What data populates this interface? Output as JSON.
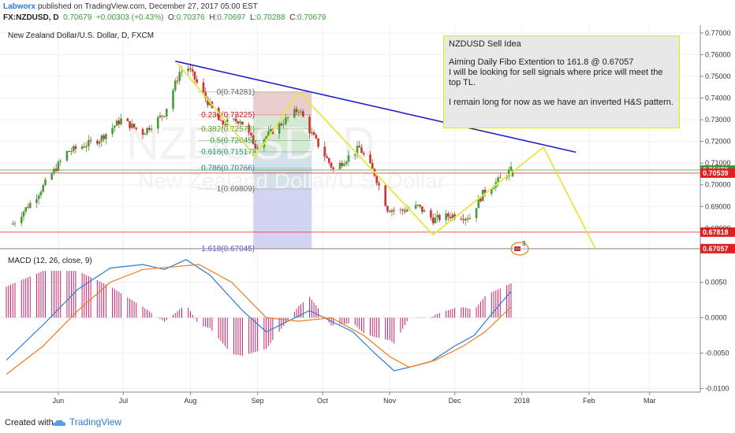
{
  "header": {
    "author": "Labworx",
    "published": "published on TradingView.com, December 27, 2017 05:00 EST",
    "symbol": "FX:NZDUSD, D",
    "price": "0.70679",
    "change": "+0.00303 (+0.43%)",
    "o_label": "O:",
    "o": "0.70376",
    "h_label": "H:",
    "h": "0.70697",
    "l_label": "L:",
    "l": "0.70288",
    "c_label": "C:",
    "c": "0.70679"
  },
  "footer": {
    "created": "Created with",
    "brand": "TradingView"
  },
  "note": {
    "title": "NZDUSD Sell Idea",
    "line1": "Aiming Daily Fibo Extention to 161.8 @ 0.67057",
    "line2": "I will be looking for sell signals where price will meet the top TL.",
    "line3": "I remain long for now as we have an inverted H&S pattern."
  },
  "colors": {
    "bull": "#4a9a3a",
    "bear": "#d23030",
    "trend": "#2020c8",
    "zigzag": "#e6e640",
    "macd": "#2a7bd6",
    "signal": "#f07a20",
    "hist": "#c8206a",
    "price_tag": "#3a9a3a",
    "level_tag": "#e02020"
  },
  "chart_data": [
    {
      "type": "candlestick",
      "title": "New Zealand Dollar/U.S. Dollar, D, FXCM",
      "watermark": "NZDUSD, D",
      "watermark2": "New Zealand Dollar/U.S. Dollar",
      "x_range": [
        "2017-05-08",
        "2018-03-20"
      ],
      "ylim": [
        0.6705,
        0.7725
      ],
      "y_ticks": [
        "0.77000",
        "0.76000",
        "0.75000",
        "0.74000",
        "0.73000",
        "0.72000",
        "0.71000",
        "0.70000",
        "0.69000",
        "0.68000"
      ],
      "x_ticks": [
        {
          "label": "Jun",
          "date": "2017-06-01"
        },
        {
          "label": "Jul",
          "date": "2017-07-01"
        },
        {
          "label": "Aug",
          "date": "2017-08-01"
        },
        {
          "label": "Sep",
          "date": "2017-09-01"
        },
        {
          "label": "Oct",
          "date": "2017-10-01"
        },
        {
          "label": "Nov",
          "date": "2017-11-01"
        },
        {
          "label": "Dec",
          "date": "2017-12-01"
        },
        {
          "label": "2018",
          "date": "2018-01-01"
        },
        {
          "label": "Feb",
          "date": "2018-02-01"
        },
        {
          "label": "Mar",
          "date": "2018-03-01"
        }
      ],
      "price_anchors": [
        [
          "2017-05-11",
          0.682
        ],
        [
          "2017-05-22",
          0.695
        ],
        [
          "2017-06-05",
          0.715
        ],
        [
          "2017-06-20",
          0.721
        ],
        [
          "2017-06-30",
          0.73
        ],
        [
          "2017-07-10",
          0.724
        ],
        [
          "2017-07-20",
          0.733
        ],
        [
          "2017-07-27",
          0.752
        ],
        [
          "2017-07-31",
          0.754
        ],
        [
          "2017-08-08",
          0.74
        ],
        [
          "2017-08-15",
          0.728
        ],
        [
          "2017-08-24",
          0.73
        ],
        [
          "2017-08-31",
          0.718
        ],
        [
          "2017-09-08",
          0.725
        ],
        [
          "2017-09-20",
          0.735
        ],
        [
          "2017-09-25",
          0.725
        ],
        [
          "2017-10-06",
          0.707
        ],
        [
          "2017-10-13",
          0.713
        ],
        [
          "2017-10-18",
          0.717
        ],
        [
          "2017-10-25",
          0.705
        ],
        [
          "2017-10-31",
          0.689
        ],
        [
          "2017-11-06",
          0.688
        ],
        [
          "2017-11-14",
          0.69
        ],
        [
          "2017-11-21",
          0.684
        ],
        [
          "2017-11-30",
          0.686
        ],
        [
          "2017-12-08",
          0.685
        ],
        [
          "2017-12-14",
          0.696
        ],
        [
          "2017-12-27",
          0.7068
        ]
      ],
      "last_price": 0.70679,
      "levels": [
        {
          "label": "0.70679",
          "value": 0.70679,
          "color": "#3a9a3a"
        },
        {
          "label": "0.70539",
          "value": 0.70539,
          "color": "#e02020"
        },
        {
          "label": "0.67818",
          "value": 0.67818,
          "color": "#e02020"
        },
        {
          "label": "0.67057",
          "value": 0.67057,
          "color": "#e02020"
        }
      ],
      "fibonacci": {
        "start_date": "2017-08-30",
        "end_date": "2017-09-26",
        "levels": [
          {
            "label": "0(0.74281)",
            "value": 0.74281
          },
          {
            "label": "0.236(0.73225)",
            "value": 0.73225
          },
          {
            "label": "0.382(0.72573)",
            "value": 0.72573
          },
          {
            "label": "0.5(0.72045)",
            "value": 0.72045
          },
          {
            "label": "0.618(0.71517)",
            "value": 0.71517
          },
          {
            "label": "0.786(0.70766)",
            "value": 0.70766
          },
          {
            "label": "1(0.69809)",
            "value": 0.69809
          },
          {
            "label": "1.618(0.67045)",
            "value": 0.67045
          }
        ]
      },
      "trendline": [
        [
          "2017-07-25",
          0.757
        ],
        [
          "2018-01-26",
          0.715
        ]
      ],
      "zigzag": [
        [
          "2017-07-26",
          0.756
        ],
        [
          "2017-08-31",
          0.713
        ],
        [
          "2017-09-20",
          0.743
        ],
        [
          "2017-11-21",
          0.677
        ],
        [
          "2018-01-11",
          0.7173
        ],
        [
          "2018-02-04",
          0.6705
        ]
      ],
      "event_badge": "3"
    },
    {
      "type": "line",
      "title": "MACD (12, 26, close, 9)",
      "ylim": [
        -0.0105,
        0.0095
      ],
      "y_ticks": [
        "0.0050",
        "0.0000",
        "-0.0050",
        "-0.0100"
      ],
      "series": [
        {
          "name": "MACD",
          "points": [
            [
              "2017-05-08",
              -0.006
            ],
            [
              "2017-05-25",
              -0.001
            ],
            [
              "2017-06-10",
              0.004
            ],
            [
              "2017-06-25",
              0.007
            ],
            [
              "2017-07-10",
              0.0075
            ],
            [
              "2017-07-20",
              0.0068
            ],
            [
              "2017-07-30",
              0.0082
            ],
            [
              "2017-08-10",
              0.006
            ],
            [
              "2017-08-25",
              0.001
            ],
            [
              "2017-09-05",
              -0.002
            ],
            [
              "2017-09-15",
              -0.0005
            ],
            [
              "2017-09-25",
              0.001
            ],
            [
              "2017-10-05",
              -0.0005
            ],
            [
              "2017-10-15",
              -0.002
            ],
            [
              "2017-10-25",
              -0.005
            ],
            [
              "2017-11-03",
              -0.0075
            ],
            [
              "2017-11-10",
              -0.007
            ],
            [
              "2017-11-20",
              -0.0062
            ],
            [
              "2017-12-01",
              -0.004
            ],
            [
              "2017-12-10",
              -0.0025
            ],
            [
              "2017-12-18",
              0.0005
            ],
            [
              "2017-12-27",
              0.0037
            ]
          ]
        },
        {
          "name": "Signal",
          "points": [
            [
              "2017-05-08",
              -0.008
            ],
            [
              "2017-05-25",
              -0.004
            ],
            [
              "2017-06-10",
              0.001
            ],
            [
              "2017-06-25",
              0.005
            ],
            [
              "2017-07-10",
              0.0068
            ],
            [
              "2017-07-25",
              0.0072
            ],
            [
              "2017-08-05",
              0.0075
            ],
            [
              "2017-08-20",
              0.005
            ],
            [
              "2017-09-05",
              0.0
            ],
            [
              "2017-09-20",
              -0.0005
            ],
            [
              "2017-10-05",
              0.0
            ],
            [
              "2017-10-20",
              -0.0025
            ],
            [
              "2017-11-01",
              -0.0055
            ],
            [
              "2017-11-10",
              -0.007
            ],
            [
              "2017-11-22",
              -0.006
            ],
            [
              "2017-12-05",
              -0.004
            ],
            [
              "2017-12-15",
              -0.002
            ],
            [
              "2017-12-27",
              0.0015
            ]
          ]
        }
      ]
    }
  ]
}
